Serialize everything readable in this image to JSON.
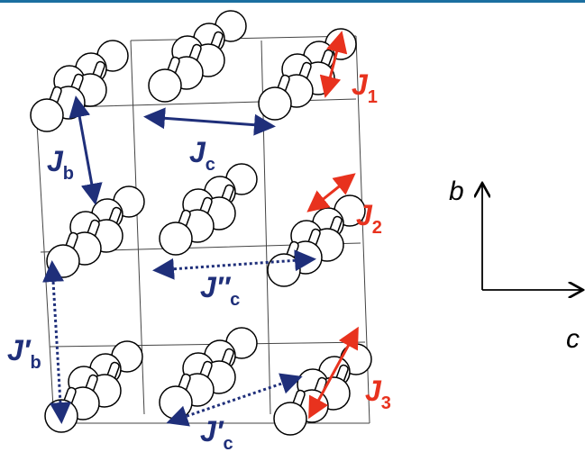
{
  "labels": [
    {
      "base": "J",
      "sub": "1"
    },
    {
      "base": "J",
      "sub": "b"
    },
    {
      "base": "J",
      "sub": "c"
    },
    {
      "base": "J",
      "sub": "2"
    },
    {
      "base": "J″",
      "sub": "c"
    },
    {
      "base": "J′",
      "sub": "b"
    },
    {
      "base": "J",
      "sub": "3"
    },
    {
      "base": "J′",
      "sub": "c"
    }
  ],
  "axes": {
    "vertical": "b",
    "horizontal": "c"
  }
}
